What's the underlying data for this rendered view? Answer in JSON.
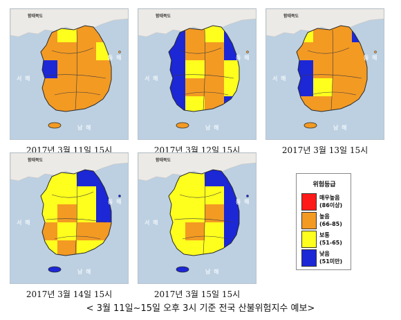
{
  "map_labels": {
    "north_korea": "함태북도",
    "east_sea": "동 해",
    "west_sea": "서 해",
    "south_sea": "남 해"
  },
  "panels": [
    {
      "caption": "2017년  3월  11일  15시",
      "dominant": "orange"
    },
    {
      "caption": "2017년  3월  12일  15시",
      "dominant": "mixed"
    },
    {
      "caption": "2017년  3월  13일  15시",
      "dominant": "orange"
    },
    {
      "caption": "2017년  3월  14일  15시",
      "dominant": "yellow"
    },
    {
      "caption": "2017년  3월  15일  15시",
      "dominant": "yellow"
    }
  ],
  "legend": {
    "title": "위험등급",
    "items": [
      {
        "label": "매우높음",
        "range": "(86이상)",
        "color": "#ff1a1a"
      },
      {
        "label": "높음",
        "range": "(66-85)",
        "color": "#f39a23"
      },
      {
        "label": "보통",
        "range": "(51-65)",
        "color": "#ffff1e"
      },
      {
        "label": "낮음",
        "range": "(51미만)",
        "color": "#1c27d6"
      }
    ]
  },
  "footer": "< 3월 11일~15일 오후 3시 기준 전국 산불위험지수 예보>",
  "colors": {
    "sea": "#bcd0e2",
    "north": "#eceae6",
    "border": "#2a2a2a"
  }
}
